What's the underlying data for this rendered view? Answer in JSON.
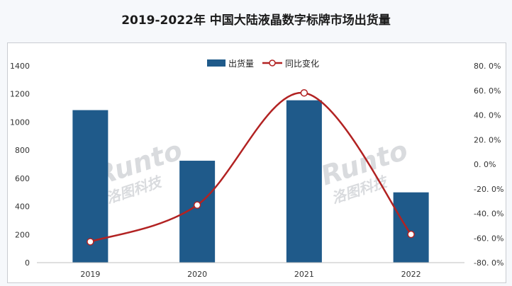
{
  "title": "2019-2022年 中国大陆液晶数字标牌市场出货量",
  "chart_data": {
    "type": "bar",
    "title": "2019-2022年 中国大陆液晶数字标牌市场出货量",
    "categories": [
      "2019",
      "2020",
      "2021",
      "2022"
    ],
    "series": [
      {
        "name": "出货量",
        "type": "bar",
        "axis": "left",
        "values": [
          1085,
          725,
          1155,
          500
        ],
        "color": "#1f5a8a"
      },
      {
        "name": "同比变化",
        "type": "line",
        "axis": "right",
        "values": [
          -63.0,
          -33.2,
          58.0,
          -57.0
        ],
        "color": "#b22222"
      }
    ],
    "y_left": {
      "ylim": [
        0,
        1400
      ],
      "ticks": [
        "0",
        "200",
        "400",
        "600",
        "800",
        "1000",
        "1200",
        "1400"
      ]
    },
    "y_right": {
      "ylim": [
        -80,
        80
      ],
      "ticks": [
        "-80. 0%",
        "-60. 0%",
        "-40. 0%",
        "-20. 0%",
        "0. 0%",
        "20. 0%",
        "40. 0%",
        "60. 0%",
        "80. 0%"
      ]
    },
    "legend_position": "top-center",
    "grid": false
  },
  "watermark": {
    "brand": "Runto",
    "cn": "洛图科技"
  }
}
